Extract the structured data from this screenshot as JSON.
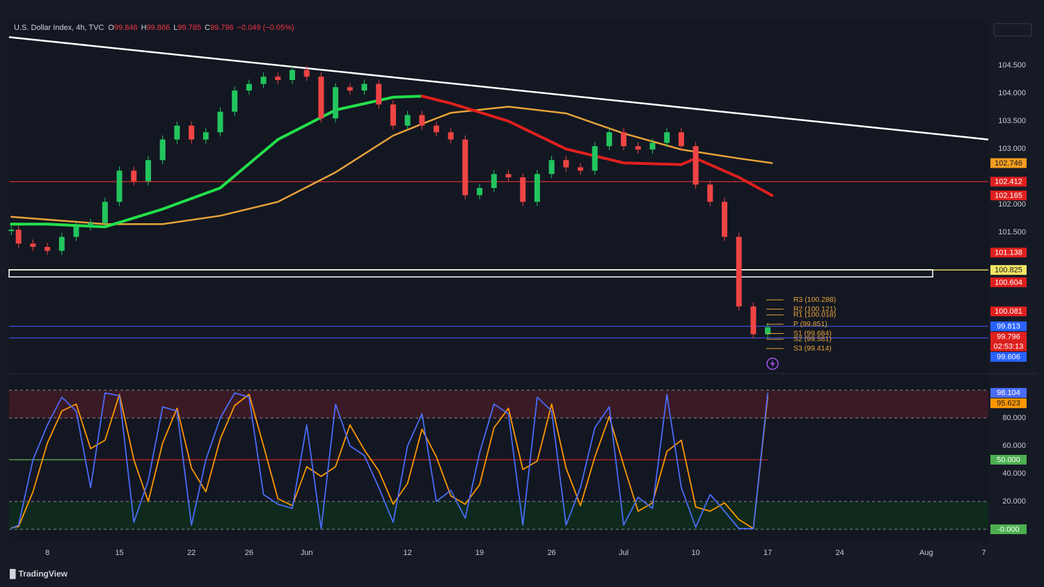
{
  "header": {
    "symbol": "U.S. Dollar Index, 4h, TVC",
    "ohlc": [
      {
        "key": "O",
        "value": "99.846"
      },
      {
        "key": "H",
        "value": "99.866"
      },
      {
        "key": "L",
        "value": "99.785"
      },
      {
        "key": "C",
        "value": "99.796"
      }
    ],
    "change": "−0.049 (−0.05%)"
  },
  "brand": "TradingView",
  "chart_data": [
    {
      "type": "candles",
      "x": [
        -2.5,
        -2,
        -1,
        0,
        1,
        2,
        3,
        4,
        5,
        6,
        7,
        8,
        9,
        10,
        11,
        12,
        13,
        14,
        15,
        16,
        17,
        18,
        19,
        20,
        21,
        22,
        23,
        24,
        25,
        26,
        27,
        28,
        29,
        30,
        31,
        32,
        33,
        34,
        35,
        36,
        37,
        38,
        39,
        40,
        41,
        42,
        43,
        44,
        45,
        46,
        47,
        48,
        49,
        50
      ],
      "xlim": [
        -2.66,
        65.31
      ],
      "ylim": [
        98.99,
        105.24
      ],
      "yticks": [
        {
          "value": 104.5,
          "label": "104.500"
        },
        {
          "value": 104,
          "label": "104.000"
        },
        {
          "value": 103.5,
          "label": "103.500"
        },
        {
          "value": 103,
          "label": "103.000"
        },
        {
          "value": 102,
          "label": "102.000"
        },
        {
          "value": 101.5,
          "label": "101.500"
        }
      ],
      "up_color": "#22c55e",
      "down_color": "#ef4444",
      "series": [
        {
          "values": [
            101.55,
            101.3,
            101.24,
            101.17,
            101.42,
            101.61,
            101.67,
            102.05,
            102.61,
            102.42,
            102.8,
            103.17,
            103.42,
            103.17,
            103.3,
            103.67,
            104.05,
            104.17,
            104.3,
            104.24,
            104.42,
            104.3,
            103.55,
            104.11,
            104.05,
            104.17,
            103.8,
            103.42,
            103.61,
            103.42,
            103.3,
            103.17,
            102.17,
            102.3,
            102.55,
            102.49,
            102.05,
            102.55,
            102.8,
            102.67,
            102.61,
            103.05,
            103.3,
            103.05,
            102.99,
            103.11,
            103.3,
            103.05,
            102.36,
            102.05,
            101.42,
            100.17,
            99.67,
            99.796
          ]
        }
      ],
      "ma_x": [
        -2.5,
        0,
        4,
        8,
        12,
        16,
        20,
        24,
        26,
        28,
        32,
        36,
        40,
        44,
        45,
        48,
        50.3
      ],
      "ma_series": [
        {
          "color": "#e8a33a",
          "width": 2.5,
          "values": [
            101.78,
            101.73,
            101.65,
            101.65,
            101.8,
            102.05,
            102.58,
            103.24,
            103.45,
            103.65,
            103.76,
            103.64,
            103.28,
            102.99,
            102.95,
            102.83,
            102.746
          ]
        },
        {
          "color": "#22e04a",
          "width": 4,
          "values": [
            101.65,
            101.65,
            101.6,
            101.92,
            102.3,
            103.17,
            103.7,
            103.93,
            103.95,
            null,
            null,
            null,
            null,
            null,
            null,
            null,
            null
          ]
        },
        {
          "color": "#e0201e",
          "width": 4,
          "values": [
            null,
            null,
            null,
            null,
            null,
            null,
            null,
            null,
            103.95,
            103.82,
            103.5,
            103.0,
            102.75,
            102.72,
            102.83,
            102.49,
            102.165
          ]
        }
      ],
      "trendline": {
        "x": [
          -2.66,
          65.31
        ],
        "values": [
          105.01,
          103.17
        ],
        "color": "#ffffff"
      },
      "levels": [
        {
          "value": 102.412,
          "color": "#d32f2f"
        },
        {
          "value": 100.825,
          "color": "#f5e663"
        },
        {
          "value": 99.813,
          "color": "#3f51d8"
        },
        {
          "value": 99.606,
          "color": "#3f51d8"
        }
      ],
      "zone": {
        "range": [
          100.7,
          100.83
        ],
        "x_end": 61.45,
        "color": "#ffffff"
      },
      "pivots": {
        "x": [
          49.9,
          51.1
        ],
        "color": "#e8a33a",
        "items": [
          {
            "label": "R3 (100.288)",
            "value": 100.288
          },
          {
            "label": "R2 (100.121)",
            "value": 100.121
          },
          {
            "label": "R1 (100.018)",
            "value": 100.018
          },
          {
            "label": "P (99.851)",
            "value": 99.851
          },
          {
            "label": "S1 (99.684)",
            "value": 99.684
          },
          {
            "label": "S2 (99.581)",
            "value": 99.581
          },
          {
            "label": "S3 (99.414)",
            "value": 99.414
          }
        ]
      },
      "price_labels": [
        {
          "value": 102.746,
          "color": "#f59d1e"
        },
        {
          "value": 102.412,
          "color": "#e0201e"
        },
        {
          "value": 102.165,
          "color": "#e0201e"
        },
        {
          "value": 101.138,
          "color": "#e0201e"
        },
        {
          "value": 100.825,
          "color": "#f5e663"
        },
        {
          "value": 100.604,
          "color": "#e0201e"
        },
        {
          "value": 100.081,
          "color": "#e0201e"
        },
        {
          "value": 99.813,
          "color": "#2962ff"
        },
        {
          "value": 99.796,
          "color": "#e0201e",
          "sub": "02:53:13"
        },
        {
          "value": 99.606,
          "color": "#2962ff"
        }
      ]
    },
    {
      "type": "line",
      "x": [
        -2.5,
        -2,
        -1,
        0,
        1,
        2,
        3,
        4,
        5,
        6,
        7,
        8,
        9,
        10,
        11,
        12,
        13,
        14,
        15,
        16,
        17,
        18,
        19,
        20,
        21,
        22,
        23,
        24,
        25,
        26,
        27,
        28,
        29,
        30,
        31,
        32,
        33,
        34,
        35,
        36,
        37,
        38,
        39,
        40,
        41,
        42,
        43,
        44,
        45,
        46,
        47,
        48,
        49,
        50
      ],
      "xlim": [
        -2.66,
        65.31
      ],
      "xticks": [
        {
          "value": 0,
          "label": "8"
        },
        {
          "value": 5,
          "label": "15"
        },
        {
          "value": 10,
          "label": "22"
        },
        {
          "value": 14,
          "label": "26"
        },
        {
          "value": 18,
          "label": "Jun"
        },
        {
          "value": 25,
          "label": "12"
        },
        {
          "value": 30,
          "label": "19"
        },
        {
          "value": 35,
          "label": "26"
        },
        {
          "value": 40,
          "label": "Jul"
        },
        {
          "value": 45,
          "label": "10"
        },
        {
          "value": 50,
          "label": "17"
        },
        {
          "value": 55,
          "label": "24"
        },
        {
          "value": 61,
          "label": "Aug"
        },
        {
          "value": 65,
          "label": "7"
        }
      ],
      "ylim": [
        -8.5,
        111.5
      ],
      "yticks": [
        {
          "value": 80,
          "label": "80.000"
        },
        {
          "value": 60,
          "label": "60.000"
        },
        {
          "value": 40,
          "label": "40.000"
        },
        {
          "value": 20,
          "label": "20.000"
        }
      ],
      "series": [
        {
          "color": "#4a6cf7",
          "values": [
            0.5,
            3,
            50,
            75,
            95,
            85,
            30,
            98,
            96,
            5,
            35,
            88,
            85,
            3,
            50,
            80,
            98,
            95,
            25,
            18,
            15,
            75,
            0.5,
            90,
            60,
            53,
            30,
            5,
            60,
            83,
            20,
            28,
            8,
            55,
            90,
            83,
            3,
            95,
            85,
            3,
            30,
            73,
            88,
            3,
            23,
            15,
            97,
            30,
            1.5,
            25,
            13,
            0.5,
            0.5,
            98.104
          ]
        },
        {
          "color": "#ff9800",
          "values": [
            1,
            2,
            27,
            62,
            85,
            90,
            58,
            64,
            97,
            50,
            20,
            62,
            87,
            44,
            27,
            65,
            89,
            97,
            60,
            22,
            17,
            45,
            38,
            45,
            75,
            57,
            42,
            18,
            33,
            72,
            52,
            24,
            18,
            32,
            73,
            87,
            43,
            49,
            90,
            44,
            17,
            52,
            81,
            46,
            13,
            19,
            56,
            64,
            16,
            13,
            19,
            7,
            0.5,
            95.623
          ]
        }
      ],
      "bands": [
        {
          "range": [
            80,
            100
          ],
          "color": "#3a1a24"
        },
        {
          "range": [
            0,
            20
          ],
          "color": "#0f2a1c"
        }
      ],
      "dashed_levels": [
        100,
        80,
        20,
        0
      ],
      "mid_level": {
        "value": 50,
        "label": "50.000",
        "color": "#4caf50",
        "line_color": "#c62828"
      },
      "floor_label": {
        "value": 0,
        "label": "-0.000",
        "color": "#4caf50"
      }
    }
  ]
}
